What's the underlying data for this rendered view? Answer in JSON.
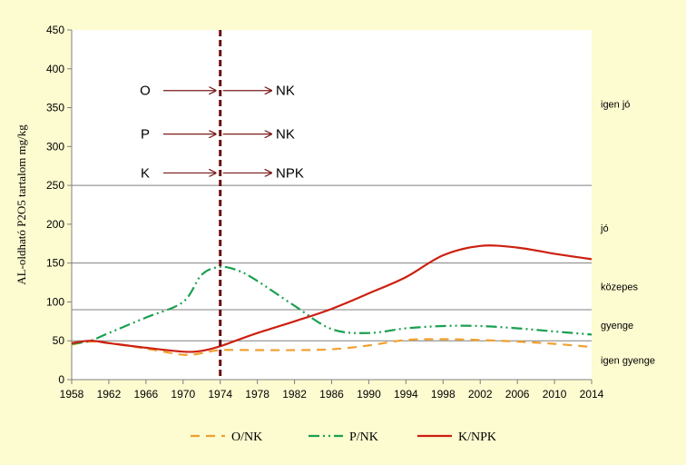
{
  "chart_data": {
    "type": "line",
    "ylabel": "AL-oldható P2O5 tartalom  mg/kg",
    "ylim": [
      0,
      450
    ],
    "yticks": [
      0,
      50,
      100,
      150,
      200,
      250,
      300,
      350,
      400,
      450
    ],
    "xlim": [
      1958,
      2014
    ],
    "xticks": [
      1958,
      1962,
      1966,
      1970,
      1974,
      1978,
      1982,
      1986,
      1990,
      1994,
      1998,
      2002,
      2006,
      2010,
      2014
    ],
    "vline_x": 1974,
    "category_lines": [
      50,
      90,
      150,
      250
    ],
    "categories": [
      {
        "label": "igen jó",
        "y": 355
      },
      {
        "label": "jó",
        "y": 195
      },
      {
        "label": "közepes",
        "y": 120
      },
      {
        "label": "gyenge",
        "y": 70
      },
      {
        "label": "igen gyenge",
        "y": 25
      }
    ],
    "annotations": [
      {
        "from": "O",
        "to": "NK",
        "y": 372
      },
      {
        "from": "P",
        "to": "NK",
        "y": 316
      },
      {
        "from": "K",
        "to": "NPK",
        "y": 266
      }
    ],
    "series": [
      {
        "name": "O/NK",
        "color": "#f0a030",
        "dash": "10,7",
        "x": [
          1958,
          1960,
          1962,
          1966,
          1970,
          1972,
          1974,
          1978,
          1982,
          1986,
          1990,
          1994,
          1998,
          2002,
          2006,
          2010,
          2014
        ],
        "y": [
          45,
          49,
          47,
          40,
          32,
          34,
          38,
          38,
          38,
          39,
          44,
          51,
          52,
          51,
          49,
          46,
          42
        ]
      },
      {
        "name": "P/NK",
        "color": "#1aa050",
        "dash": "12,4,2,4,2,4",
        "x": [
          1958,
          1960,
          1962,
          1966,
          1970,
          1972,
          1974,
          1976,
          1978,
          1982,
          1986,
          1990,
          1994,
          1998,
          2002,
          2006,
          2010,
          2014
        ],
        "y": [
          46,
          50,
          60,
          80,
          100,
          135,
          145,
          140,
          127,
          95,
          65,
          60,
          66,
          69,
          69,
          66,
          62,
          58
        ]
      },
      {
        "name": "K/NPK",
        "color": "#cc2010",
        "dash": "",
        "x": [
          1958,
          1960,
          1962,
          1966,
          1970,
          1972,
          1974,
          1978,
          1982,
          1986,
          1990,
          1994,
          1998,
          2002,
          2006,
          2010,
          2014
        ],
        "y": [
          47,
          50,
          47,
          41,
          36,
          37,
          43,
          60,
          75,
          91,
          111,
          132,
          160,
          172,
          170,
          162,
          155
        ]
      }
    ]
  }
}
